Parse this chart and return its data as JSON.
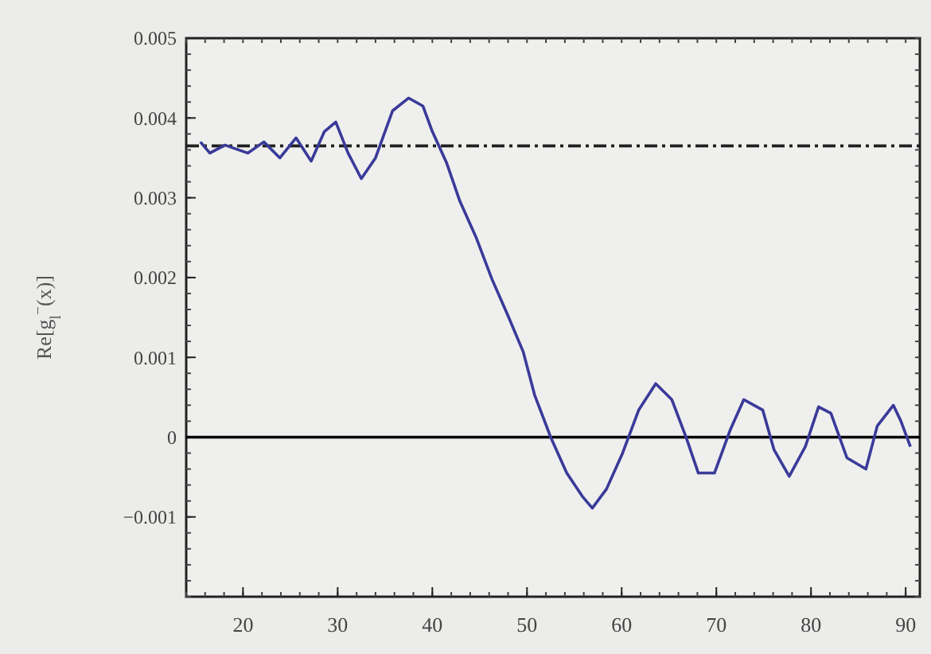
{
  "chart_data": {
    "type": "line",
    "ylabel": "Re[g$_{l}$$^{−}$(x)]",
    "xlim": [
      14,
      91.5
    ],
    "xticks": [
      20,
      30,
      40,
      50,
      60,
      70,
      80,
      90
    ],
    "ylim": [
      -0.002,
      0.005
    ],
    "yticks": [
      {
        "value": -0.001,
        "label": "−0.001"
      },
      0,
      0.001,
      0.002,
      0.003,
      0.004,
      0.005
    ],
    "grid": false,
    "marker": "none",
    "line_style": "solid",
    "ref_lines": [
      {
        "axis": "y",
        "value": 0.00365,
        "line_style": "dashed",
        "color": "#202020"
      },
      {
        "axis": "y",
        "value": 0,
        "line_style": "solid",
        "color": "#000000"
      }
    ],
    "series": [
      {
        "color": "#3a3a9a",
        "x": [
          15.5,
          16.5,
          18.1,
          20.5,
          22.2,
          23.9,
          25.6,
          27.2,
          28.6,
          29.8,
          31.1,
          32.5,
          34.0,
          35.8,
          37.5,
          39.0,
          40.0,
          41.5,
          42.9,
          44.6,
          46.3,
          48.0,
          49.6,
          50.8,
          52.5,
          54.2,
          55.9,
          56.9,
          58.4,
          60.1,
          61.8,
          63.6,
          65.3,
          66.8,
          68.1,
          69.8,
          71.5,
          72.9,
          74.9,
          76.1,
          77.7,
          79.4,
          80.8,
          82.1,
          83.8,
          85.8,
          87.0,
          88.7,
          89.5,
          90.5
        ],
        "values": [
          0.0037,
          0.00356,
          0.00366,
          0.00356,
          0.0037,
          0.0035,
          0.00375,
          0.00346,
          0.00383,
          0.00395,
          0.00356,
          0.00324,
          0.0035,
          0.00409,
          0.00425,
          0.00415,
          0.00383,
          0.00344,
          0.00296,
          0.00251,
          0.00198,
          0.00152,
          0.00107,
          0.00053,
          0.0,
          -0.00045,
          -0.00075,
          -0.00089,
          -0.00065,
          -0.0002,
          0.00034,
          0.00067,
          0.00047,
          0.0,
          -0.00045,
          -0.00045,
          0.0001,
          0.00047,
          0.00034,
          -0.00016,
          -0.00049,
          -0.00012,
          0.00038,
          0.0003,
          -0.00026,
          -0.0004,
          0.00014,
          0.0004,
          0.0002,
          -0.00012
        ]
      }
    ]
  }
}
